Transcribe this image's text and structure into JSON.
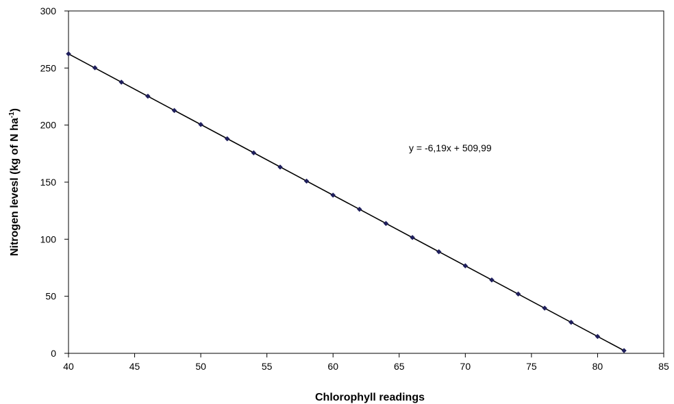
{
  "chart_data": {
    "type": "scatter",
    "xlabel": "Chlorophyll readings",
    "ylabel_main": "Nitrogen levesl (kg of N ha",
    "ylabel_sup": "-1",
    "ylabel_close": ")",
    "xlim": [
      40,
      85
    ],
    "ylim": [
      0,
      300
    ],
    "x_ticks": [
      40,
      45,
      50,
      55,
      60,
      65,
      70,
      75,
      80,
      85
    ],
    "y_ticks": [
      0,
      50,
      100,
      150,
      200,
      250,
      300
    ],
    "grid": false,
    "legend": "none",
    "annotation": "y = -6,19x + 509,99",
    "trendline": {
      "slope": -6.19,
      "intercept": 509.99,
      "x_range": [
        40,
        82
      ]
    },
    "series": [
      {
        "marker": "diamond",
        "color": "#1f1f5c",
        "x": [
          40,
          42,
          44,
          46,
          48,
          50,
          52,
          54,
          56,
          58,
          60,
          62,
          64,
          66,
          68,
          70,
          72,
          74,
          76,
          78,
          80,
          82
        ],
        "y": [
          262.4,
          250.2,
          237.6,
          225.3,
          212.8,
          200.5,
          188.0,
          175.7,
          163.2,
          150.9,
          138.6,
          126.2,
          113.8,
          101.5,
          89.0,
          76.7,
          64.3,
          52.0,
          39.6,
          27.2,
          14.8,
          2.4
        ]
      }
    ]
  }
}
